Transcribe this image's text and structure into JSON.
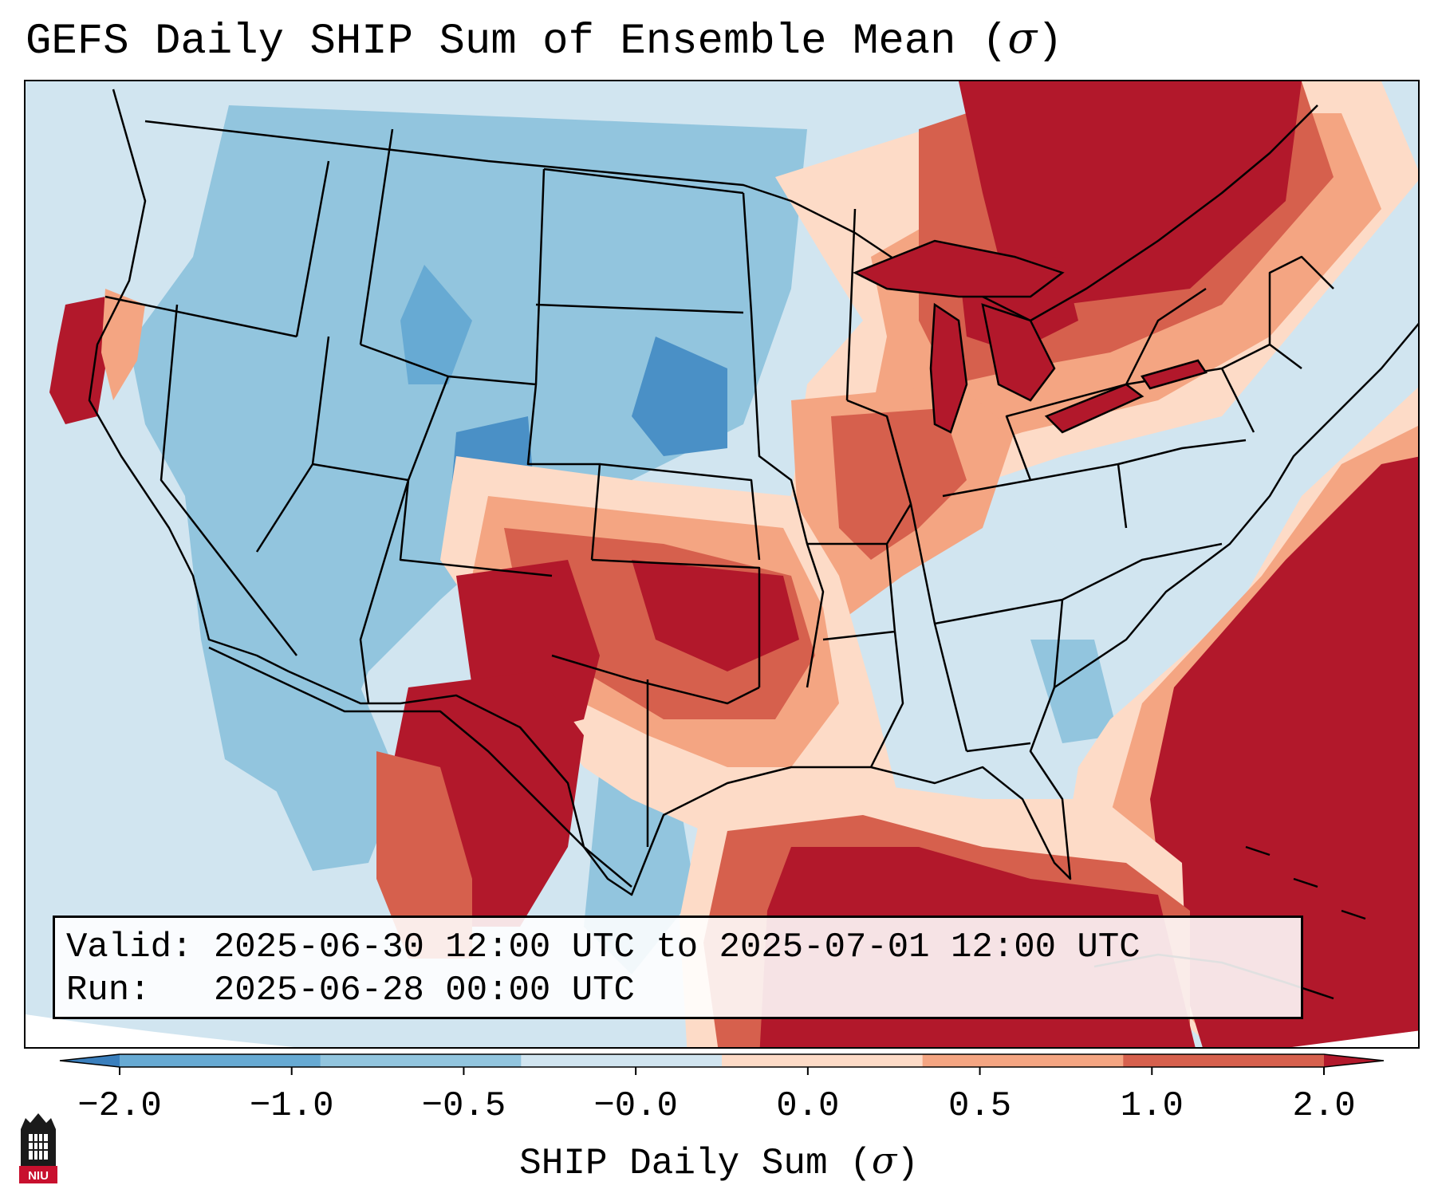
{
  "title": "GEFS Daily SHIP Sum of Ensemble Mean (",
  "title_symbol": "σ",
  "title_end": ")",
  "info": {
    "valid_label": "Valid:",
    "valid_value": "2025-06-30 12:00 UTC to 2025-07-01 12:00 UTC",
    "run_label": "Run:",
    "run_value": "2025-06-28 00:00 UTC"
  },
  "colorbar": {
    "label": "SHIP Daily Sum (",
    "label_symbol": "σ",
    "label_end": ")",
    "ticks": [
      "−2.0",
      "−1.0",
      "−0.5",
      "−0.0",
      "0.0",
      "0.5",
      "1.0",
      "2.0"
    ],
    "colors": [
      "#3a7fbd",
      "#67aad3",
      "#92c5de",
      "#d1e5f0",
      "#fddbc7",
      "#f4a582",
      "#d6604d",
      "#b2182b"
    ],
    "extend": "both"
  },
  "map": {
    "region": "Contiguous United States",
    "ocean_fill": "#d1e5f0"
  },
  "logo": {
    "text": "NIU",
    "color": "#c8102e"
  }
}
